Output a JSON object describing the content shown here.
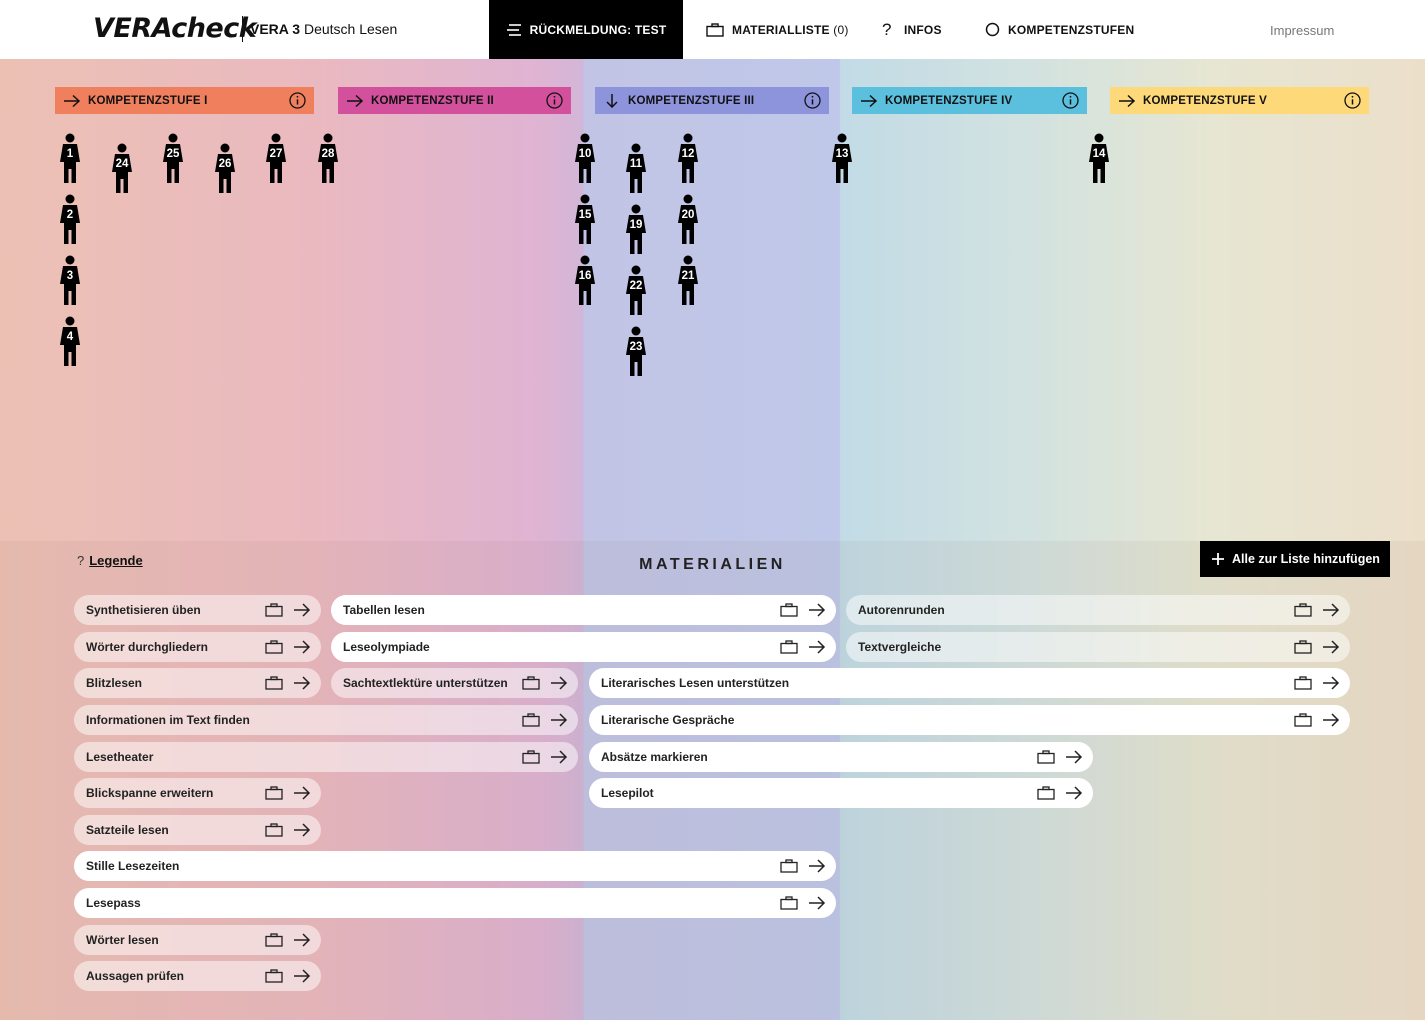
{
  "header": {
    "logo": "VERAcheck",
    "subtitle_bold": "VERA 3",
    "subtitle_rest": "Deutsch Lesen",
    "nav": {
      "feedback": "RÜCKMELDUNG: TEST",
      "materials": "MATERIALLISTE",
      "materials_count": "(0)",
      "info": "INFOS",
      "levels": "KOMPETENZSTUFEN"
    },
    "impressum": "Impressum"
  },
  "levels": [
    {
      "label": "KOMPETENZSTUFE I",
      "color": "#ef7f5d",
      "arrow": "right"
    },
    {
      "label": "KOMPETENZSTUFE II",
      "color": "#d2509c",
      "arrow": "right"
    },
    {
      "label": "KOMPETENZSTUFE III",
      "color": "#8e94dc",
      "arrow": "down"
    },
    {
      "label": "KOMPETENZSTUFE IV",
      "color": "#5bc0de",
      "arrow": "right"
    },
    {
      "label": "KOMPETENZSTUFE V",
      "color": "#fdd97a",
      "arrow": "right"
    }
  ],
  "students": {
    "level1": [
      "1",
      "24",
      "25",
      "26",
      "27",
      "28",
      "2",
      "3",
      "4"
    ],
    "level3": [
      "10",
      "11",
      "12",
      "15",
      "19",
      "20",
      "16",
      "22",
      "21",
      "23"
    ],
    "level4": [
      "13"
    ],
    "level5": [
      "14"
    ]
  },
  "materials": {
    "legend_icon": "?",
    "legend": "Legende",
    "title": "MATERIALIEN",
    "add_all": "Alle zur Liste hinzufügen",
    "items": [
      "Synthetisieren üben",
      "Tabellen lesen",
      "Autorenrunden",
      "Wörter durchgliedern",
      "Leseolympiade",
      "Textvergleiche",
      "Blitzlesen",
      "Sachtextlektüre unterstützen",
      "Literarisches Lesen unterstützen",
      "Informationen im Text finden",
      "Literarische Gespräche",
      "Lesetheater",
      "Absätze markieren",
      "Blickspanne erweitern",
      "Lesepilot",
      "Satzteile lesen",
      "Stille Lesezeiten",
      "Lesepass",
      "Wörter lesen",
      "Aussagen prüfen"
    ]
  }
}
